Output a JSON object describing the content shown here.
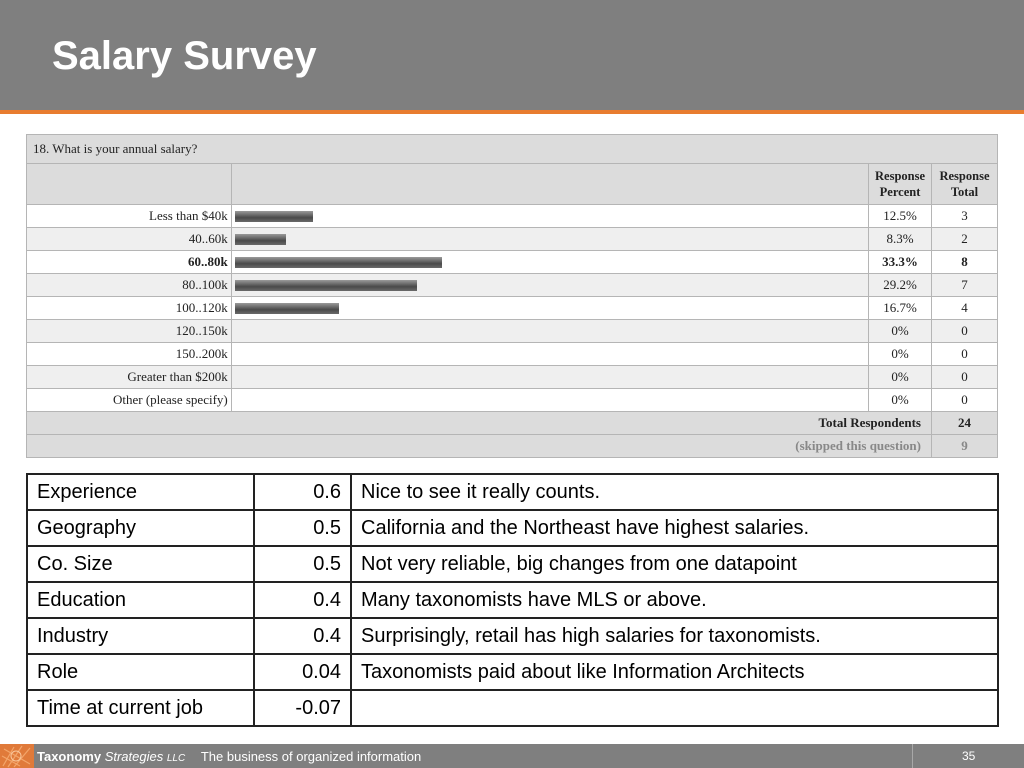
{
  "slide": {
    "title": "Salary Survey",
    "page_number": "35"
  },
  "survey": {
    "question": "18. What is your annual salary?",
    "col_percent_line1": "Response",
    "col_percent_line2": "Percent",
    "col_total_line1": "Response",
    "col_total_line2": "Total",
    "rows": [
      {
        "label": "Less than $40k",
        "percent_text": "12.5%",
        "percent": 12.5,
        "total": "3",
        "highlight": false
      },
      {
        "label": "40..60k",
        "percent_text": "8.3%",
        "percent": 8.3,
        "total": "2",
        "highlight": false
      },
      {
        "label": "60..80k",
        "percent_text": "33.3%",
        "percent": 33.3,
        "total": "8",
        "highlight": true
      },
      {
        "label": "80..100k",
        "percent_text": "29.2%",
        "percent": 29.2,
        "total": "7",
        "highlight": false
      },
      {
        "label": "100..120k",
        "percent_text": "16.7%",
        "percent": 16.7,
        "total": "4",
        "highlight": false
      },
      {
        "label": "120..150k",
        "percent_text": "0%",
        "percent": 0,
        "total": "0",
        "highlight": false
      },
      {
        "label": "150..200k",
        "percent_text": "0%",
        "percent": 0,
        "total": "0",
        "highlight": false
      },
      {
        "label": "Greater than $200k",
        "percent_text": "0%",
        "percent": 0,
        "total": "0",
        "highlight": false
      },
      {
        "label": "Other (please specify)",
        "percent_text": "0%",
        "percent": 0,
        "total": "0",
        "highlight": false
      }
    ],
    "total_label": "Total Respondents",
    "total_value": "24",
    "skipped_label": "(skipped this question)",
    "skipped_value": "9"
  },
  "factors": [
    {
      "name": "Experience",
      "value": "0.6",
      "note": "Nice to see it really counts."
    },
    {
      "name": "Geography",
      "value": "0.5",
      "note": "California and the Northeast have highest salaries."
    },
    {
      "name": "Co. Size",
      "value": "0.5",
      "note": "Not very reliable, big changes from one datapoint"
    },
    {
      "name": "Education",
      "value": "0.4",
      "note": "Many taxonomists have MLS or above."
    },
    {
      "name": "Industry",
      "value": "0.4",
      "note": "Surprisingly, retail has high salaries for taxonomists."
    },
    {
      "name": "Role",
      "value": "0.04",
      "note": "Taxonomists paid about like Information Architects"
    },
    {
      "name": "Time at current job",
      "value": "-0.07",
      "note": ""
    }
  ],
  "footer": {
    "brand_name": "Taxonomy",
    "brand_word": "Strategies",
    "brand_suffix": "LLC",
    "tagline": "The business of organized information"
  },
  "colors": {
    "header_bg": "#7f7f7f",
    "accent": "#e87c2f",
    "table_header_bg": "#dcdcdc"
  }
}
